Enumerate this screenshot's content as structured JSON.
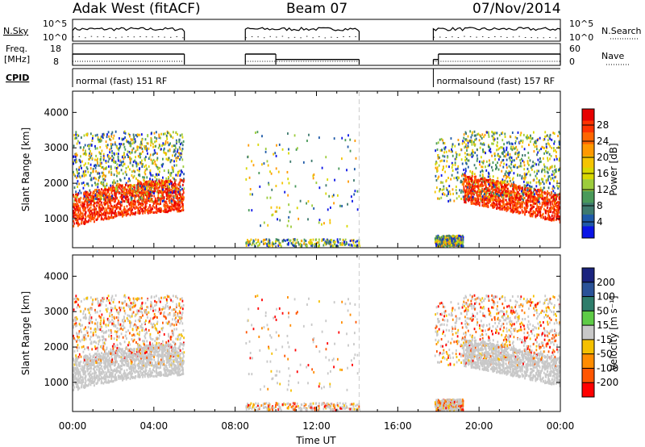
{
  "header": {
    "station": "Adak West (fitACF)",
    "beam": "Beam 07",
    "date": "07/Nov/2014"
  },
  "panels": {
    "nsky": {
      "label": "N.Sky",
      "right_label": "N.Search",
      "y_ticks_left": [
        "10^5",
        "10^0"
      ],
      "y_ticks_right": [
        "10^5",
        "10^0"
      ]
    },
    "freq": {
      "label_line1": "Freq.",
      "label_line2": "[MHz]",
      "right_label": "Nave",
      "y_ticks_left": [
        "18",
        "8"
      ],
      "y_ticks_right": [
        "60",
        "0"
      ],
      "segments": [
        {
          "start": 0.0,
          "end": 5.5,
          "freq": 15.5
        },
        {
          "start": 8.5,
          "end": 10.0,
          "freq": 15.5
        },
        {
          "start": 10.0,
          "end": 14.1,
          "freq": 11.3
        },
        {
          "start": 17.75,
          "end": 18.0,
          "freq": 11.3
        },
        {
          "start": 18.0,
          "end": 24.0,
          "freq": 15.5
        }
      ]
    },
    "cpid": {
      "label": "CPID",
      "modes": [
        {
          "start": 0.0,
          "end": 5.5,
          "text": "normal (fast) 151 RF"
        },
        {
          "start": 17.75,
          "end": 24.0,
          "text": "normalsound (fast) 157 RF"
        }
      ]
    }
  },
  "chart_data": [
    {
      "type": "heatmap",
      "parameter": "power",
      "ylabel": "Slant Range [km]",
      "yticks": [
        1000,
        2000,
        3000,
        4000
      ],
      "ylim": [
        180,
        4600
      ],
      "xlim": [
        0,
        24
      ],
      "colorbar": {
        "label": "Power [dB]",
        "ticks": [
          "28",
          "24",
          "20",
          "16",
          "12",
          "8",
          "4"
        ],
        "colors": [
          "#e60000",
          "#ff3300",
          "#ff6600",
          "#ff9900",
          "#f5c400",
          "#d8d800",
          "#9ccc3c",
          "#4a9a5a",
          "#3e7a6e",
          "#1f5aa8",
          "#0a14e6"
        ]
      },
      "data_windows": [
        [
          0.0,
          5.5
        ],
        [
          8.5,
          14.1
        ],
        [
          17.75,
          24.0
        ]
      ]
    },
    {
      "type": "heatmap",
      "parameter": "velocity",
      "ylabel": "Slant Range [km]",
      "yticks": [
        1000,
        2000,
        3000,
        4000
      ],
      "ylim": [
        180,
        4600
      ],
      "xlim": [
        0,
        24
      ],
      "colorbar": {
        "label": "Velocity [m s⁻¹]",
        "ticks": [
          "200",
          "100",
          "50",
          "15",
          "-15",
          "-50",
          "-100",
          "-200"
        ],
        "colors": [
          "#1a237e",
          "#2a5298",
          "#2e7d6b",
          "#5ecb46",
          "#c8c8c8",
          "#f5c000",
          "#ff8c00",
          "#ff5500",
          "#ff0000"
        ]
      },
      "data_windows": [
        [
          0.0,
          5.5
        ],
        [
          8.5,
          14.1
        ],
        [
          17.75,
          24.0
        ]
      ]
    }
  ],
  "x_axis": {
    "ticks": [
      "00:00",
      "04:00",
      "08:00",
      "12:00",
      "16:00",
      "20:00",
      "00:00"
    ],
    "label": "Time UT"
  }
}
